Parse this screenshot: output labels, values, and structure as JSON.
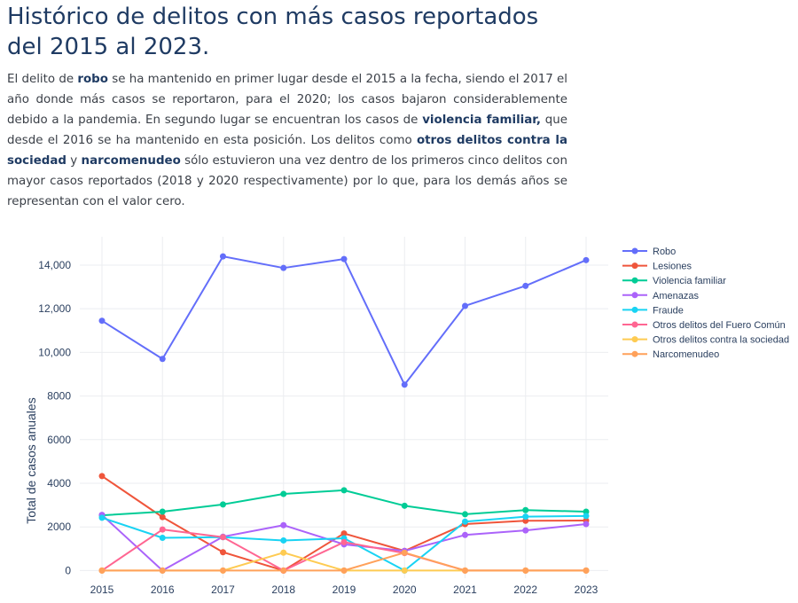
{
  "title": "Histórico de delitos con más casos reportados del 2015 al 2023.",
  "description": [
    {
      "t": "El delito de ",
      "b": false
    },
    {
      "t": "robo",
      "b": true
    },
    {
      "t": " se ha mantenido en primer lugar desde el 2015 a la fecha, siendo el 2017 el año donde más casos se reportaron, para el 2020; los casos bajaron considerablemente debido a la pandemia. En segundo lugar se encuentran los casos de ",
      "b": false
    },
    {
      "t": "violencia familiar,",
      "b": true
    },
    {
      "t": " que desde el 2016 se ha mantenido en esta posición. Los delitos como ",
      "b": false
    },
    {
      "t": "otros delitos contra la sociedad",
      "b": true
    },
    {
      "t": " y ",
      "b": false
    },
    {
      "t": "narcomenudeo",
      "b": true
    },
    {
      "t": " sólo estuvieron una vez dentro de los primeros cinco delitos con mayor casos reportados (2018 y 2020 respectivamente) por lo que, para los demás años se representan con el valor cero.",
      "b": false
    }
  ],
  "chart_data": {
    "type": "line",
    "x": [
      2015,
      2016,
      2017,
      2018,
      2019,
      2020,
      2021,
      2022,
      2023
    ],
    "ylabel": "Total de casos anuales",
    "xlabel": "",
    "ylim": [
      -350,
      15300
    ],
    "yticks": [
      0,
      2000,
      4000,
      6000,
      8000,
      10000,
      12000,
      14000
    ],
    "ytick_labels": [
      "0",
      "2000",
      "4000",
      "6000",
      "8000",
      "10,000",
      "12,000",
      "14,000"
    ],
    "grid": true,
    "legend_position": "top-right",
    "series": [
      {
        "name": "Robo",
        "color": "#636efa",
        "values": [
          11450,
          9700,
          14400,
          13870,
          14280,
          8520,
          12130,
          13050,
          14230
        ]
      },
      {
        "name": "Lesiones",
        "color": "#ef553b",
        "values": [
          4330,
          2450,
          840,
          0,
          1700,
          900,
          2130,
          2280,
          2290
        ]
      },
      {
        "name": "Violencia familiar",
        "color": "#00cc96",
        "values": [
          2530,
          2700,
          3030,
          3510,
          3680,
          2970,
          2580,
          2770,
          2700
        ]
      },
      {
        "name": "Amenazas",
        "color": "#ab63fa",
        "values": [
          2550,
          0,
          1550,
          2080,
          1200,
          900,
          1630,
          1840,
          2130
        ]
      },
      {
        "name": "Fraude",
        "color": "#19d3f3",
        "values": [
          2420,
          1500,
          1530,
          1380,
          1480,
          0,
          2240,
          2470,
          2500
        ]
      },
      {
        "name": "Otros delitos del Fuero Común",
        "color": "#ff6692",
        "values": [
          0,
          1880,
          1530,
          0,
          1300,
          800,
          0,
          0,
          0
        ]
      },
      {
        "name": "Otros delitos contra la sociedad",
        "color": "#fecb52",
        "values": [
          0,
          0,
          0,
          820,
          0,
          0,
          0,
          0,
          0
        ]
      },
      {
        "name": "Narcomenudeo",
        "color": "#ffa15a",
        "values": [
          0,
          0,
          0,
          0,
          0,
          820,
          0,
          0,
          0
        ]
      }
    ]
  }
}
